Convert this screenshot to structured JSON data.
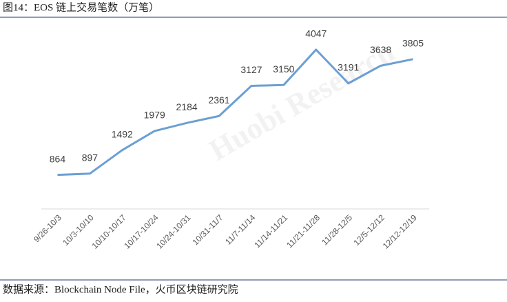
{
  "chart_data": {
    "type": "line",
    "title": "图14：EOS 链上交易笔数（万笔）",
    "categories": [
      "9/26-10/3",
      "10/3-10/10",
      "10/10-10/17",
      "10/17-10/24",
      "10/24-10/31",
      "10/31-11/7",
      "11/7-11/14",
      "11/14-11/21",
      "11/21-11/28",
      "11/28-12/5",
      "12/5-12/12",
      "12/12-12/19"
    ],
    "values": [
      864,
      897,
      1492,
      1979,
      2184,
      2361,
      3127,
      3150,
      4047,
      3191,
      3638,
      3805
    ],
    "color": "#6b9fd3",
    "source": "数据来源：Blockchain Node File，火币区块链研究院",
    "watermark": "Huobi Research"
  }
}
